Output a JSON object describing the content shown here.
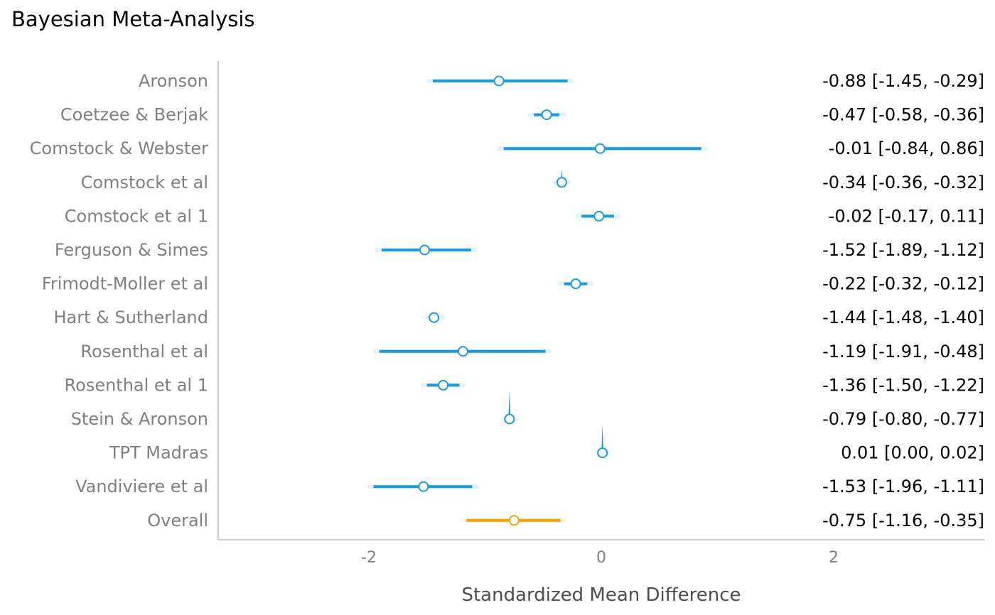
{
  "chart_data": {
    "type": "forest",
    "title": "Bayesian Meta-Analysis",
    "xlabel": "Standardized Mean Difference",
    "xlim": [
      -3.3,
      3.3
    ],
    "xticks": [
      -2,
      0,
      2
    ],
    "xtick_labels": [
      "-2",
      "0",
      "2"
    ],
    "grid": false,
    "colors": {
      "study": "#1f9ad6",
      "overall": "#f0a30a",
      "label": "#7f7f7f",
      "axis": "#c8c8c8"
    },
    "studies": [
      {
        "name": "Aronson",
        "estimate": -0.88,
        "lower": -1.45,
        "upper": -0.29,
        "label": "-0.88 [-1.45, -0.29]"
      },
      {
        "name": "Coetzee & Berjak",
        "estimate": -0.47,
        "lower": -0.58,
        "upper": -0.36,
        "label": "-0.47 [-0.58, -0.36]"
      },
      {
        "name": "Comstock & Webster",
        "estimate": -0.01,
        "lower": -0.84,
        "upper": 0.86,
        "label": "-0.01 [-0.84, 0.86]"
      },
      {
        "name": "Comstock et al",
        "estimate": -0.34,
        "lower": -0.36,
        "upper": -0.32,
        "label": "-0.34 [-0.36, -0.32]"
      },
      {
        "name": "Comstock et al 1",
        "estimate": -0.02,
        "lower": -0.17,
        "upper": 0.11,
        "label": "-0.02 [-0.17, 0.11]"
      },
      {
        "name": "Ferguson & Simes",
        "estimate": -1.52,
        "lower": -1.89,
        "upper": -1.12,
        "label": "-1.52 [-1.89, -1.12]"
      },
      {
        "name": "Frimodt-Moller et al",
        "estimate": -0.22,
        "lower": -0.32,
        "upper": -0.12,
        "label": "-0.22 [-0.32, -0.12]"
      },
      {
        "name": "Hart & Sutherland",
        "estimate": -1.44,
        "lower": -1.48,
        "upper": -1.4,
        "label": "-1.44 [-1.48, -1.40]"
      },
      {
        "name": "Rosenthal et al",
        "estimate": -1.19,
        "lower": -1.91,
        "upper": -0.48,
        "label": "-1.19 [-1.91, -0.48]"
      },
      {
        "name": "Rosenthal et al 1",
        "estimate": -1.36,
        "lower": -1.5,
        "upper": -1.22,
        "label": "-1.36 [-1.50, -1.22]"
      },
      {
        "name": "Stein & Aronson",
        "estimate": -0.79,
        "lower": -0.8,
        "upper": -0.77,
        "label": "-0.79 [-0.80, -0.77]"
      },
      {
        "name": "TPT Madras",
        "estimate": 0.01,
        "lower": 0.0,
        "upper": 0.02,
        "label": "0.01 [0.00, 0.02]"
      },
      {
        "name": "Vandiviere et al",
        "estimate": -1.53,
        "lower": -1.96,
        "upper": -1.11,
        "label": "-1.53 [-1.96, -1.11]"
      }
    ],
    "overall": {
      "name": "Overall",
      "estimate": -0.75,
      "lower": -1.16,
      "upper": -0.35,
      "label": "-0.75 [-1.16, -0.35]"
    }
  }
}
